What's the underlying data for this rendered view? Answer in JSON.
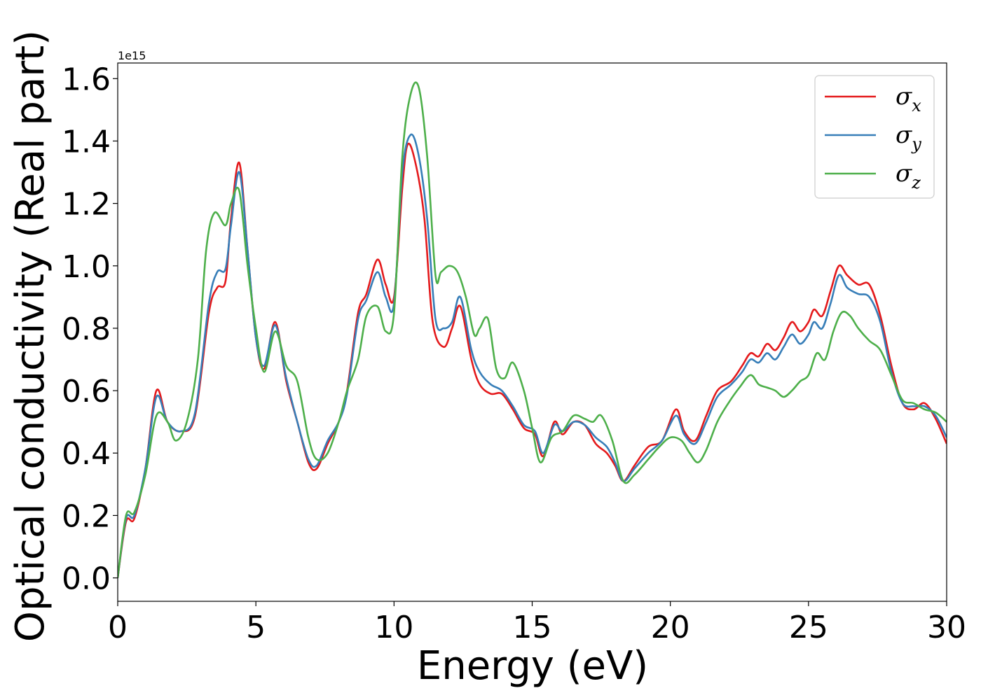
{
  "chart_data": {
    "type": "line",
    "xlabel": "Energy (eV)",
    "ylabel": "Optical conductivity (Real part)",
    "y_offset_label": "1e15",
    "xlim": [
      0,
      30
    ],
    "ylim": [
      -0.075,
      1.65
    ],
    "xticks": [
      0,
      5,
      10,
      15,
      20,
      25,
      30
    ],
    "yticks": [
      0.0,
      0.2,
      0.4,
      0.6,
      0.8,
      1.0,
      1.2,
      1.4,
      1.6
    ],
    "grid": false,
    "legend_position": "top-right",
    "series": [
      {
        "name": "σx",
        "color": "#e41a1c",
        "x": [
          0,
          0.3,
          0.6,
          1.0,
          1.4,
          1.8,
          2.3,
          2.8,
          3.3,
          3.6,
          3.9,
          4.1,
          4.4,
          4.7,
          5.0,
          5.3,
          5.7,
          6.1,
          6.5,
          6.9,
          7.2,
          7.6,
          8.0,
          8.3,
          8.7,
          9.0,
          9.4,
          9.7,
          10.0,
          10.3,
          10.5,
          10.8,
          11.1,
          11.4,
          11.8,
          12.1,
          12.4,
          12.8,
          13.1,
          13.5,
          13.9,
          14.3,
          14.7,
          15.1,
          15.4,
          15.8,
          16.1,
          16.5,
          16.9,
          17.3,
          17.7,
          18.0,
          18.3,
          18.7,
          19.2,
          19.7,
          20.2,
          20.5,
          20.9,
          21.3,
          21.7,
          22.2,
          22.6,
          22.9,
          23.2,
          23.5,
          23.8,
          24.1,
          24.4,
          24.7,
          25.0,
          25.2,
          25.5,
          25.8,
          26.1,
          26.4,
          26.8,
          27.2,
          27.6,
          28.0,
          28.4,
          28.8,
          29.2,
          29.6,
          30.0
        ],
        "values": [
          0.0,
          0.18,
          0.19,
          0.35,
          0.6,
          0.5,
          0.47,
          0.52,
          0.85,
          0.93,
          0.95,
          1.15,
          1.33,
          1.05,
          0.77,
          0.67,
          0.82,
          0.63,
          0.5,
          0.37,
          0.35,
          0.43,
          0.5,
          0.6,
          0.85,
          0.91,
          1.02,
          0.94,
          0.9,
          1.25,
          1.39,
          1.32,
          1.15,
          0.82,
          0.74,
          0.8,
          0.87,
          0.7,
          0.62,
          0.59,
          0.59,
          0.54,
          0.48,
          0.46,
          0.39,
          0.5,
          0.46,
          0.5,
          0.49,
          0.43,
          0.4,
          0.36,
          0.31,
          0.36,
          0.42,
          0.44,
          0.54,
          0.47,
          0.44,
          0.52,
          0.6,
          0.63,
          0.68,
          0.72,
          0.71,
          0.75,
          0.73,
          0.77,
          0.82,
          0.79,
          0.82,
          0.86,
          0.84,
          0.92,
          1.0,
          0.97,
          0.94,
          0.94,
          0.84,
          0.68,
          0.56,
          0.54,
          0.56,
          0.51,
          0.43
        ]
      },
      {
        "name": "σy",
        "color": "#377eb8",
        "x": [
          0,
          0.3,
          0.6,
          1.0,
          1.4,
          1.8,
          2.3,
          2.8,
          3.3,
          3.6,
          3.9,
          4.1,
          4.4,
          4.7,
          5.0,
          5.3,
          5.7,
          6.1,
          6.5,
          6.9,
          7.2,
          7.6,
          8.0,
          8.3,
          8.7,
          9.0,
          9.4,
          9.7,
          10.0,
          10.3,
          10.6,
          10.9,
          11.2,
          11.5,
          11.8,
          12.1,
          12.4,
          12.8,
          13.1,
          13.5,
          13.9,
          14.3,
          14.7,
          15.1,
          15.4,
          15.8,
          16.1,
          16.5,
          16.9,
          17.3,
          17.7,
          18.0,
          18.3,
          18.7,
          19.2,
          19.7,
          20.2,
          20.5,
          20.9,
          21.3,
          21.7,
          22.2,
          22.6,
          22.9,
          23.2,
          23.5,
          23.8,
          24.1,
          24.4,
          24.7,
          25.0,
          25.2,
          25.5,
          25.8,
          26.1,
          26.4,
          26.8,
          27.2,
          27.6,
          28.0,
          28.4,
          28.8,
          29.2,
          29.6,
          30.0
        ],
        "values": [
          0.0,
          0.19,
          0.2,
          0.35,
          0.58,
          0.5,
          0.47,
          0.53,
          0.88,
          0.98,
          0.99,
          1.13,
          1.3,
          1.05,
          0.77,
          0.68,
          0.81,
          0.64,
          0.5,
          0.38,
          0.36,
          0.44,
          0.5,
          0.59,
          0.83,
          0.89,
          0.98,
          0.9,
          0.88,
          1.3,
          1.42,
          1.35,
          1.15,
          0.83,
          0.8,
          0.82,
          0.9,
          0.73,
          0.66,
          0.62,
          0.6,
          0.55,
          0.49,
          0.47,
          0.4,
          0.49,
          0.47,
          0.5,
          0.49,
          0.45,
          0.42,
          0.37,
          0.31,
          0.35,
          0.4,
          0.44,
          0.52,
          0.46,
          0.43,
          0.5,
          0.58,
          0.62,
          0.66,
          0.7,
          0.69,
          0.72,
          0.7,
          0.74,
          0.78,
          0.75,
          0.78,
          0.82,
          0.8,
          0.88,
          0.97,
          0.93,
          0.91,
          0.9,
          0.82,
          0.66,
          0.56,
          0.55,
          0.55,
          0.52,
          0.45
        ]
      },
      {
        "name": "σz",
        "color": "#4daf4a",
        "x": [
          0,
          0.3,
          0.6,
          1.0,
          1.4,
          1.8,
          2.1,
          2.5,
          2.9,
          3.2,
          3.5,
          3.9,
          4.1,
          4.4,
          4.7,
          5.0,
          5.3,
          5.7,
          6.1,
          6.5,
          6.9,
          7.2,
          7.6,
          8.0,
          8.3,
          8.7,
          9.0,
          9.4,
          9.7,
          10.0,
          10.3,
          10.6,
          10.9,
          11.2,
          11.5,
          11.7,
          12.0,
          12.3,
          12.6,
          12.9,
          13.1,
          13.4,
          13.7,
          14.0,
          14.3,
          14.7,
          15.0,
          15.3,
          15.7,
          16.1,
          16.5,
          16.9,
          17.2,
          17.5,
          17.9,
          18.3,
          18.7,
          19.2,
          19.6,
          20.0,
          20.4,
          20.7,
          21.0,
          21.3,
          21.7,
          22.1,
          22.5,
          22.9,
          23.2,
          23.5,
          23.8,
          24.1,
          24.4,
          24.7,
          25.0,
          25.3,
          25.6,
          25.9,
          26.2,
          26.5,
          26.8,
          27.2,
          27.6,
          28.0,
          28.4,
          28.8,
          29.2,
          29.6,
          30.0
        ],
        "values": [
          0.0,
          0.2,
          0.21,
          0.33,
          0.52,
          0.5,
          0.44,
          0.5,
          0.7,
          1.05,
          1.17,
          1.13,
          1.2,
          1.24,
          1.0,
          0.8,
          0.66,
          0.79,
          0.68,
          0.63,
          0.45,
          0.38,
          0.4,
          0.5,
          0.6,
          0.7,
          0.84,
          0.87,
          0.79,
          0.85,
          1.35,
          1.55,
          1.57,
          1.35,
          0.97,
          0.98,
          1.0,
          0.98,
          0.9,
          0.78,
          0.8,
          0.83,
          0.67,
          0.64,
          0.69,
          0.6,
          0.48,
          0.37,
          0.45,
          0.47,
          0.52,
          0.51,
          0.5,
          0.52,
          0.44,
          0.31,
          0.33,
          0.38,
          0.42,
          0.45,
          0.44,
          0.4,
          0.37,
          0.41,
          0.5,
          0.56,
          0.61,
          0.65,
          0.62,
          0.61,
          0.6,
          0.58,
          0.6,
          0.63,
          0.65,
          0.72,
          0.7,
          0.79,
          0.85,
          0.84,
          0.8,
          0.76,
          0.73,
          0.65,
          0.57,
          0.56,
          0.54,
          0.53,
          0.5
        ]
      }
    ],
    "legend": {
      "entries": [
        {
          "symbol": "σ",
          "subscript": "x"
        },
        {
          "symbol": "σ",
          "subscript": "y"
        },
        {
          "symbol": "σ",
          "subscript": "z"
        }
      ]
    }
  }
}
